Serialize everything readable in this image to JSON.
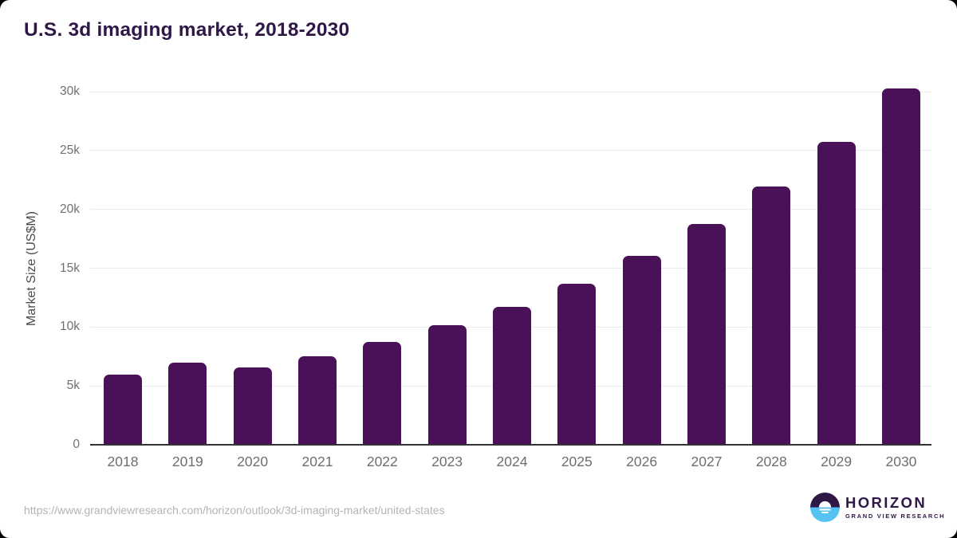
{
  "title": "U.S. 3d imaging market, 2018-2030",
  "footer": {
    "source_url": "https://www.grandviewresearch.com/horizon/outlook/3d-imaging-market/united-states",
    "logo": {
      "brand": "HORIZON",
      "subbrand": "GRAND VIEW RESEARCH",
      "icon": "horizon-sun-icon",
      "purple": "#2f1747",
      "blue": "#56c2f2"
    }
  },
  "colors": {
    "page_background": "#000000",
    "card_background": "#ffffff",
    "title_color": "#2f1747"
  },
  "chart_data": {
    "type": "bar",
    "title": "U.S. 3d imaging market, 2018-2030",
    "xlabel": "",
    "ylabel": "Market Size (US$M)",
    "categories": [
      "2018",
      "2019",
      "2020",
      "2021",
      "2022",
      "2023",
      "2024",
      "2025",
      "2026",
      "2027",
      "2028",
      "2029",
      "2030"
    ],
    "values": [
      5930,
      6990,
      6590,
      7490,
      8720,
      10130,
      11730,
      13650,
      16070,
      18780,
      21960,
      25750,
      30280
    ],
    "ylim": [
      0,
      30000
    ],
    "yticks": [
      0,
      5000,
      10000,
      15000,
      20000,
      25000,
      30000
    ],
    "ytick_labels": [
      "0",
      "5k",
      "10k",
      "15k",
      "20k",
      "25k",
      "30k"
    ],
    "grid": true,
    "legend": false,
    "bar_color": "#4a1158",
    "gridline_color": "#ececec",
    "axis_line_color": "#333333",
    "tick_label_color": "#707070"
  }
}
